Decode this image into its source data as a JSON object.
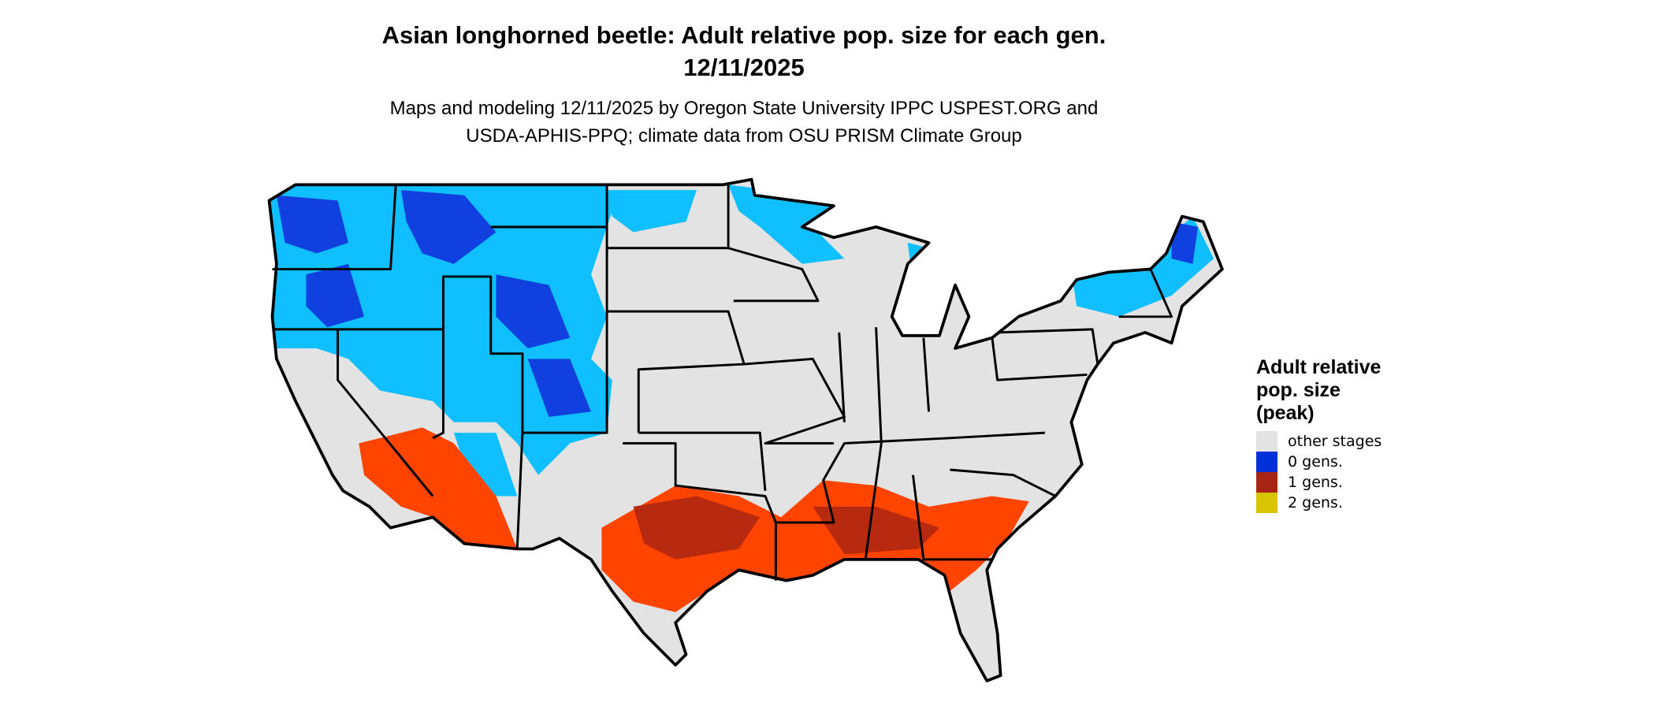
{
  "title": {
    "line1": "Asian longhorned beetle: Adult relative pop. size for each gen.",
    "line2": "12/11/2025"
  },
  "subtitle": {
    "line1": "Maps and modeling 12/11/2025 by Oregon State University IPPC USPEST.ORG and",
    "line2": "USDA-APHIS-PPQ; climate data from OSU PRISM Climate Group"
  },
  "map": {
    "region": "Contiguous United States",
    "land_color": "#e3e3e3",
    "border_color": "#000000",
    "blue_light": "#10bfff",
    "blue_dark": "#1040e0",
    "red_light": "#ff4400",
    "red_dark": "#b82a10"
  },
  "legend": {
    "title_lines": [
      "Adult relative",
      "pop. size",
      "(peak)"
    ],
    "items": [
      {
        "label": "other stages",
        "color": "#e3e3e3"
      },
      {
        "label": "0 gens.",
        "color": "#0030d8"
      },
      {
        "label": "1 gens.",
        "color": "#a82415"
      },
      {
        "label": "2 gens.",
        "color": "#d8c400"
      }
    ]
  }
}
